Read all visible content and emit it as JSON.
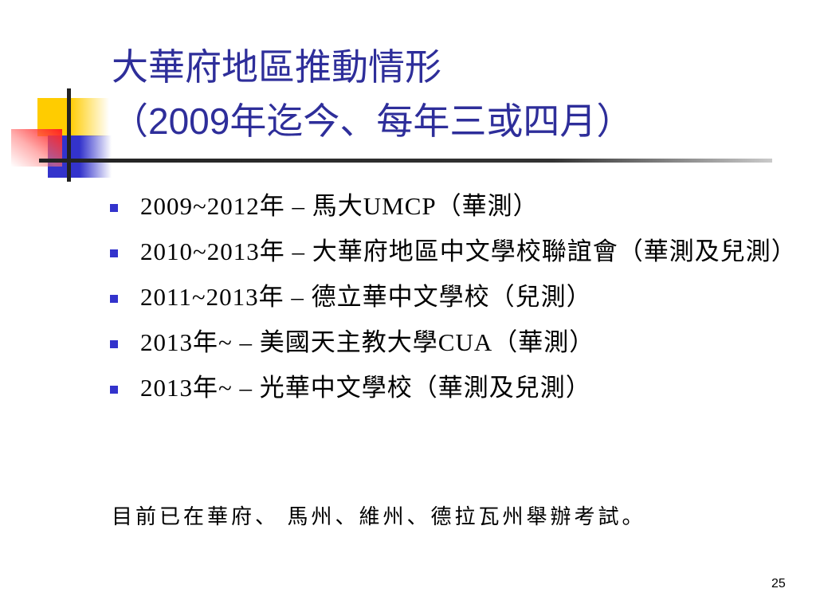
{
  "title": {
    "line1": "大華府地區推動情形",
    "line2_open": "（",
    "line2_year": "2009",
    "line2_rest": "年迄今、每年三或四月）"
  },
  "bullets": [
    {
      "text": "2009~2012年 – 馬大UMCP（華測）"
    },
    {
      "text": "2010~2013年 – 大華府地區中文學校聯誼會（華測及兒測）"
    },
    {
      "text": "2011~2013年 – 德立華中文學校（兒測）"
    },
    {
      "text": "2013年~ – 美國天主教大學CUA（華測）"
    },
    {
      "text": "2013年~ – 光華中文學校（華測及兒測）"
    }
  ],
  "footer_text": "目前已在華府、 馬州、維州、德拉瓦州舉辦考試。",
  "page_number": "25",
  "colors": {
    "title": "#2E2E9A",
    "bullet": "#3333CC",
    "logo_yellow": "#FFCC00",
    "logo_red": "#FF2020",
    "logo_blue": "#3333CC"
  }
}
